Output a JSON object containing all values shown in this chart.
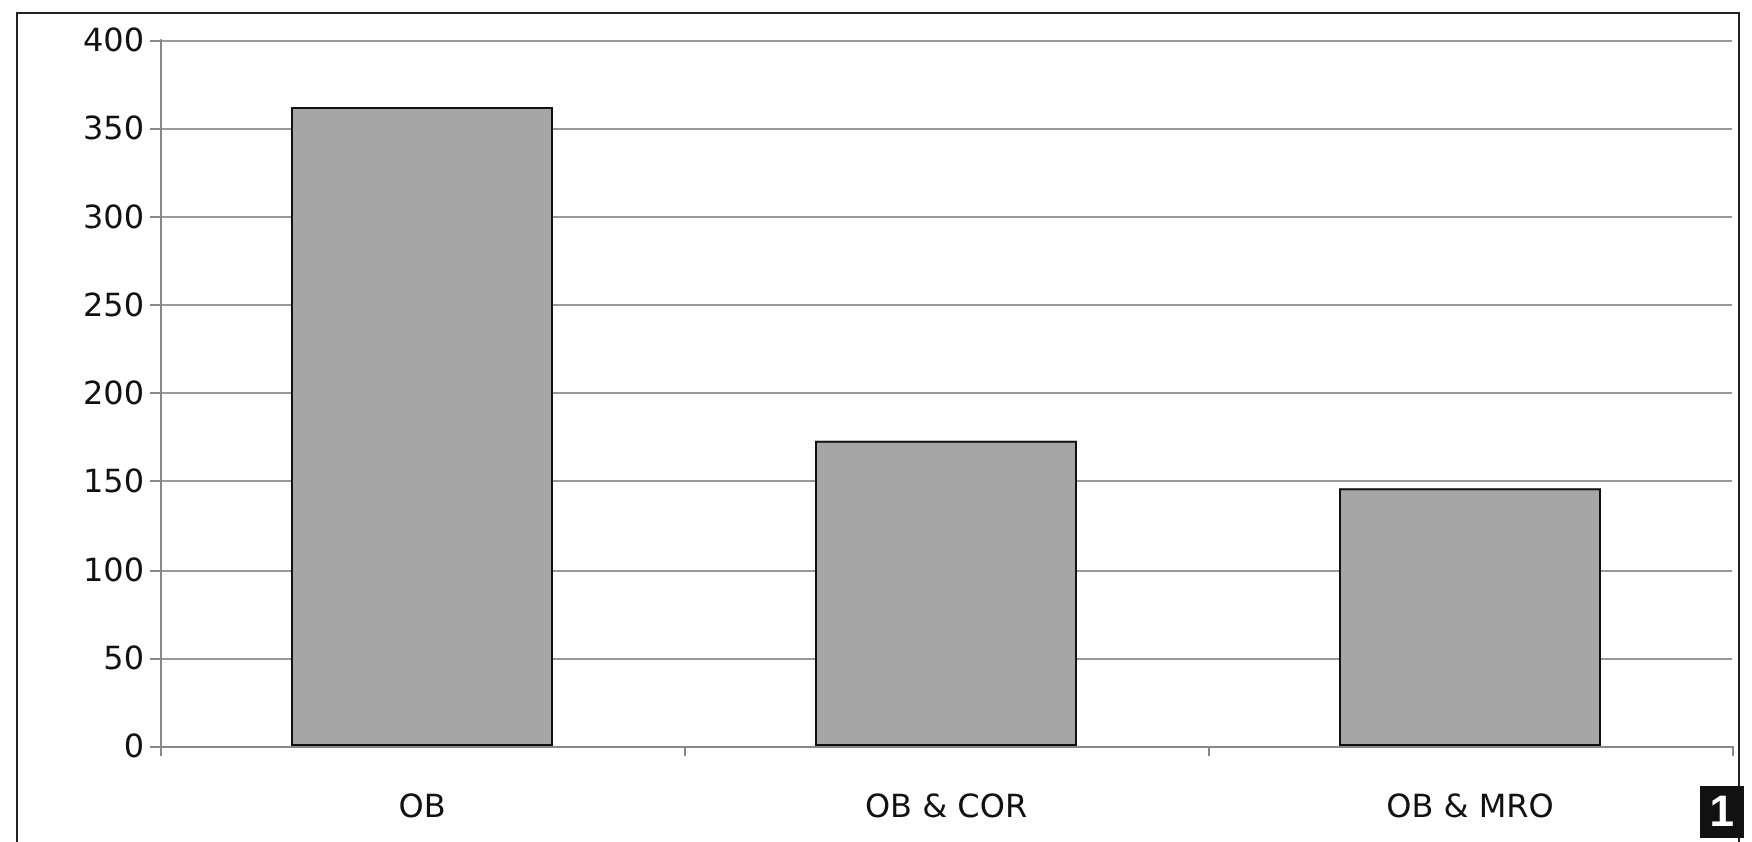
{
  "chart_data": {
    "type": "bar",
    "categories": [
      "OB",
      "OB & COR",
      "OB & MRO"
    ],
    "values": [
      362,
      173,
      146
    ],
    "color": "#a6a6a6",
    "ylim": [
      0,
      400
    ],
    "yticks": [
      0,
      50,
      100,
      150,
      200,
      250,
      300,
      350,
      400
    ],
    "grid": "y",
    "annotations": [
      "1"
    ]
  }
}
